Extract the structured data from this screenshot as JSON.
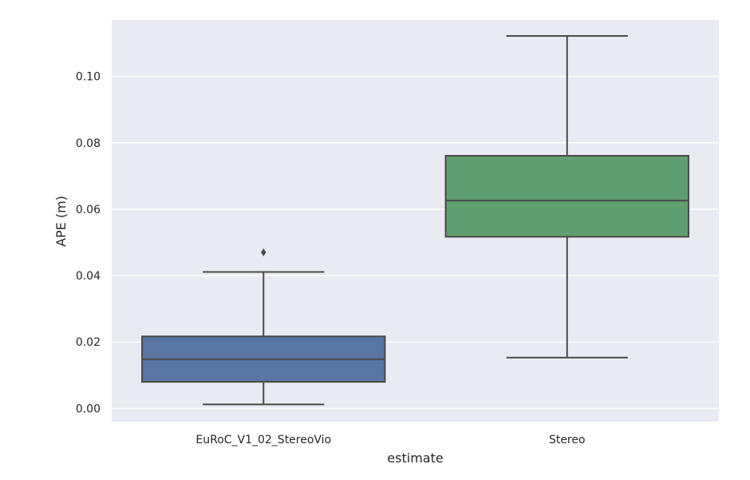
{
  "chart_data": {
    "type": "box",
    "xlabel": "estimate",
    "ylabel": "APE (m)",
    "ylim": [
      -0.004,
      0.117
    ],
    "yticks": [
      0.0,
      0.02,
      0.04,
      0.06,
      0.08,
      0.1
    ],
    "ytick_labels": [
      "0.00",
      "0.02",
      "0.04",
      "0.06",
      "0.08",
      "0.10"
    ],
    "grid": true,
    "categories": [
      "EuRoC_V1_02_StereoVio",
      "Stereo"
    ],
    "boxes": [
      {
        "category": "EuRoC_V1_02_StereoVio",
        "whisker_low": 0.0012,
        "q1": 0.008,
        "median": 0.0148,
        "q3": 0.0217,
        "whisker_high": 0.0411,
        "outliers": [
          0.047
        ],
        "color": "#5975a4"
      },
      {
        "category": "Stereo",
        "whisker_low": 0.0153,
        "q1": 0.0517,
        "median": 0.0626,
        "q3": 0.0761,
        "whisker_high": 0.1122,
        "outliers": [],
        "color": "#5f9e6e"
      }
    ],
    "background_color": "#eaeaf2",
    "line_color": "#4a4a4a"
  }
}
